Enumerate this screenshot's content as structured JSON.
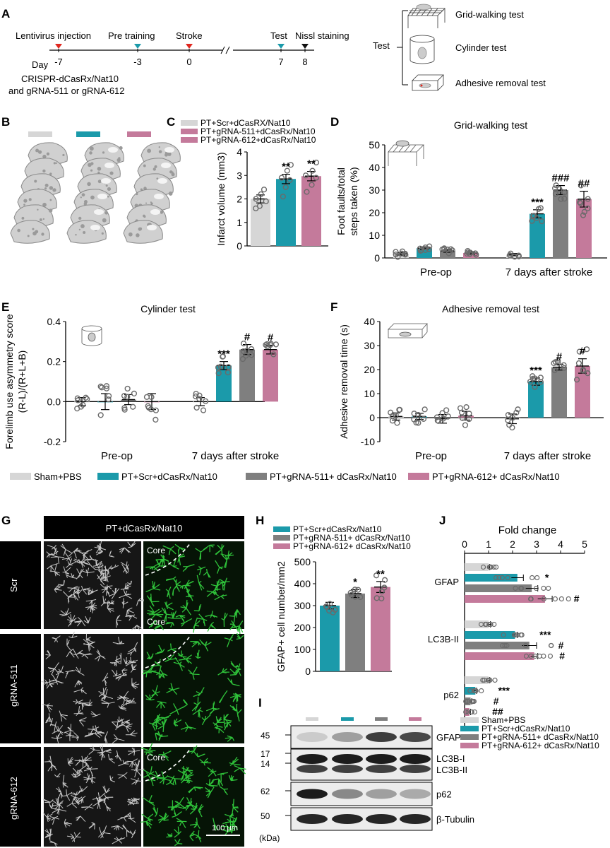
{
  "colors": {
    "sham": "#d6d6d6",
    "scr": "#1b9aaa",
    "g511": "#7f7f7f",
    "g612": "#c47a9b",
    "arrow_red": "#e0271f",
    "arrow_teal": "#1b9aaa",
    "arrow_black": "#111111",
    "green": "#2fc23a"
  },
  "panels": {
    "A": {
      "letter": "A",
      "events": [
        {
          "label": "Lentivirus injection",
          "day": "-7",
          "marker": "red"
        },
        {
          "label": "Pre training",
          "day": "-3",
          "marker": "teal"
        },
        {
          "label": "Stroke",
          "day": "0",
          "marker": "red"
        },
        {
          "label": "Test",
          "day": "7",
          "marker": "teal"
        },
        {
          "label": "Nissl staining",
          "day": "8",
          "marker": "black"
        }
      ],
      "day_label": "Day",
      "note_line1": "CRISPR-dCasRx/Nat10",
      "note_line2": "and gRNA-511 or gRNA-612",
      "test_label": "Test",
      "tests": [
        "Grid-walking test",
        "Cylinder test",
        "Adhesive removal test"
      ]
    },
    "B": {
      "letter": "B"
    },
    "C": {
      "letter": "C"
    },
    "D": {
      "letter": "D"
    },
    "E": {
      "letter": "E"
    },
    "F": {
      "letter": "F"
    },
    "G": {
      "letter": "G",
      "header": "PT+dCasRx/Nat10",
      "rows": [
        "Scr",
        "gRNA-511",
        "gRNA-612"
      ],
      "core_label": "Core",
      "scale_bar": "100 μm"
    },
    "H": {
      "letter": "H"
    },
    "I": {
      "letter": "I",
      "bands": [
        {
          "mw": "45",
          "name": "GFAP"
        },
        {
          "mw": "17",
          "mw2": "14",
          "name": "LC3B-I",
          "name2": "LC3B-II"
        },
        {
          "mw": "62",
          "name": "p62"
        },
        {
          "mw": "50",
          "name": "β-Tubulin"
        }
      ],
      "unit": "(kDa)"
    },
    "J": {
      "letter": "J"
    }
  },
  "bottom_legend": [
    "Sham+PBS",
    "PT+Scr+dCasRx/Nat10",
    "PT+gRNA-511+ dCasRx/Nat10",
    "PT+gRNA-612+ dCasRx/Nat10"
  ],
  "chart_data": [
    {
      "id": "C",
      "type": "bar",
      "legend": [
        "PT+Scr+dCasRX/Nat10",
        "PT+gRNA-511+dCasRx/Nat10",
        "PT+gRNA-612+dCasRx/Nat10"
      ],
      "ylabel": "Infarct volume (mm3)",
      "ylim": [
        0,
        4
      ],
      "yticks": [
        "0",
        "1",
        "2",
        "3",
        "4"
      ],
      "values": [
        2.0,
        2.85,
        2.97
      ],
      "errors": [
        0.17,
        0.2,
        0.2
      ],
      "sig": [
        "",
        "**",
        "**"
      ],
      "points": [
        [
          1.6,
          1.7,
          1.9,
          2.0,
          2.2,
          2.4
        ],
        [
          2.1,
          2.5,
          2.8,
          2.9,
          3.2,
          3.45
        ],
        [
          2.3,
          2.6,
          2.9,
          3.0,
          3.2,
          3.55
        ]
      ]
    },
    {
      "id": "D",
      "type": "bar",
      "title": "Grid-walking test",
      "ylabel_line1": "Foot faults/total",
      "ylabel_line2": "steps taken (%)",
      "ylim": [
        0,
        50
      ],
      "yticks": [
        "0",
        "10",
        "20",
        "30",
        "40",
        "50"
      ],
      "categories": [
        "Pre-op",
        "7 days after stroke"
      ],
      "values": [
        [
          1.8,
          4.3,
          3.1,
          2.2
        ],
        [
          1.5,
          19.5,
          30.0,
          26.0
        ]
      ],
      "errors": [
        [
          0.6,
          0.6,
          0.6,
          0.6
        ],
        [
          0.5,
          1.8,
          2.0,
          3.5
        ]
      ],
      "sig": [
        [
          "",
          "",
          "",
          ""
        ],
        [
          "",
          "***",
          "###",
          "##"
        ]
      ]
    },
    {
      "id": "E",
      "type": "bar",
      "title": "Cylinder test",
      "ylabel_line1": "Forelimb use asymmetry score",
      "ylabel_line2": "(R-L)/(R+L+B)",
      "ylim": [
        -0.2,
        0.4
      ],
      "yticks": [
        "-0.2",
        "0.0",
        "0.2",
        "0.4"
      ],
      "categories": [
        "Pre-op",
        "7 days after stroke"
      ],
      "values": [
        [
          0.0,
          0.0,
          0.01,
          0.0
        ],
        [
          0.0,
          0.18,
          0.26,
          0.26
        ]
      ],
      "errors": [
        [
          0.02,
          0.04,
          0.025,
          0.04
        ],
        [
          0.02,
          0.02,
          0.025,
          0.022
        ]
      ],
      "sig": [
        [
          "",
          "",
          "",
          ""
        ],
        [
          "",
          "***",
          "#",
          "#"
        ]
      ]
    },
    {
      "id": "F",
      "type": "bar",
      "title": "Adhesive removal test",
      "ylabel": "Adhesive removal time (s)",
      "ylim": [
        -10,
        40
      ],
      "yticks": [
        "-10",
        "0",
        "10",
        "20",
        "30",
        "40"
      ],
      "categories": [
        "Pre-op",
        "7 days after stroke"
      ],
      "values": [
        [
          0.5,
          0.5,
          -0.5,
          0.8
        ],
        [
          -0.5,
          15.0,
          21.0,
          21.5
        ]
      ],
      "errors": [
        [
          1.5,
          1.3,
          1.8,
          1.8
        ],
        [
          2.0,
          1.5,
          1.2,
          3.0
        ]
      ],
      "sig": [
        [
          "",
          "",
          "",
          ""
        ],
        [
          "",
          "***",
          "#",
          "#"
        ]
      ]
    },
    {
      "id": "H",
      "type": "bar",
      "legend": [
        "PT+Scr+dCasRx/Nat10",
        "PT+gRNA-511+ dCasRx/Nat10",
        "PT+gRNA-612+ dCasRx/Nat10"
      ],
      "ylabel": "GFAP+ cell number/mm2",
      "ylim": [
        0,
        500
      ],
      "yticks": [
        "0",
        "100",
        "200",
        "300",
        "400",
        "500"
      ],
      "values": [
        300,
        355,
        385
      ],
      "errors": [
        15,
        18,
        25
      ],
      "sig": [
        "",
        "*",
        "**"
      ]
    },
    {
      "id": "J",
      "type": "bar",
      "title": "Fold change",
      "xlim": [
        0,
        5
      ],
      "xticks": [
        "0",
        "1",
        "2",
        "3",
        "4",
        "5"
      ],
      "categories": [
        "GFAP",
        "LC3B-II",
        "p62"
      ],
      "values": [
        [
          1.0,
          2.2,
          2.8,
          3.35
        ],
        [
          1.0,
          2.1,
          2.7,
          2.9
        ],
        [
          1.0,
          0.45,
          0.25,
          0.2
        ]
      ],
      "errors": [
        [
          0.05,
          0.25,
          0.25,
          0.3
        ],
        [
          0.08,
          0.12,
          0.3,
          0.15
        ],
        [
          0.05,
          0.05,
          0.05,
          0.05
        ]
      ],
      "sig": [
        [
          "",
          "*",
          "",
          "#"
        ],
        [
          "",
          "***",
          "#",
          "#"
        ],
        [
          "",
          "***",
          "#",
          "##"
        ]
      ],
      "legend": [
        "Sham+PBS",
        "PT+Scr+dCasRx/Nat10",
        "PT+gRNA-511+ dCasRx/Nat10",
        "PT+gRNA-612+ dCasRx/Nat10"
      ]
    }
  ]
}
